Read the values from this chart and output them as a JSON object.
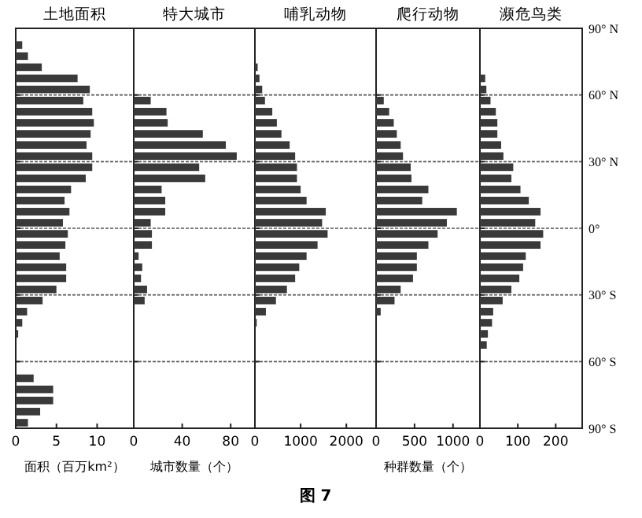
{
  "chart_data": [
    {
      "type": "bar",
      "orientation": "horizontal",
      "title": "土地面积",
      "xlabel": "面积（百万km²）",
      "x": [
        87.5,
        82.5,
        77.5,
        72.5,
        67.5,
        62.5,
        57.5,
        52.5,
        47.5,
        42.5,
        37.5,
        32.5,
        27.5,
        22.5,
        17.5,
        12.5,
        7.5,
        2.5,
        -2.5,
        -7.5,
        -12.5,
        -17.5,
        -22.5,
        -27.5,
        -32.5,
        -37.5,
        -42.5,
        -47.5,
        -52.5,
        -57.5,
        -62.5,
        -67.5,
        -72.5,
        -77.5,
        -82.5,
        -87.5
      ],
      "values": [
        0,
        0.8,
        1.5,
        3.2,
        7.6,
        9.1,
        8.3,
        9.4,
        9.6,
        9.2,
        8.7,
        9.4,
        9.4,
        8.6,
        6.8,
        6.0,
        6.6,
        5.8,
        6.4,
        6.1,
        5.4,
        6.2,
        6.2,
        5.0,
        3.3,
        1.4,
        0.8,
        0.3,
        0,
        0,
        0,
        2.2,
        4.6,
        4.6,
        3.0,
        1.5
      ],
      "color": "#3a3a3a",
      "xlim": [
        0,
        14.5
      ],
      "xticks": [
        0,
        5,
        10
      ],
      "ylim": [
        -90,
        90
      ],
      "yticks": [
        90,
        60,
        30,
        0,
        -30,
        -60,
        -90
      ],
      "grid": "y",
      "tick_labels": "x"
    },
    {
      "type": "bar",
      "orientation": "horizontal",
      "title": "特大城市",
      "xlabel": "城市数量（个）",
      "x": [
        87.5,
        82.5,
        77.5,
        72.5,
        67.5,
        62.5,
        57.5,
        52.5,
        47.5,
        42.5,
        37.5,
        32.5,
        27.5,
        22.5,
        17.5,
        12.5,
        7.5,
        2.5,
        -2.5,
        -7.5,
        -12.5,
        -17.5,
        -22.5,
        -27.5,
        -32.5,
        -37.5,
        -42.5,
        -47.5,
        -52.5,
        -57.5,
        -62.5,
        -67.5,
        -72.5,
        -77.5,
        -82.5,
        -87.5
      ],
      "values": [
        0,
        0,
        0,
        0,
        0,
        0,
        14,
        27,
        28,
        57,
        76,
        85,
        54,
        59,
        23,
        26,
        26,
        14,
        15,
        15,
        4,
        7,
        6,
        11,
        9,
        0,
        0,
        0,
        0,
        0,
        0,
        0,
        0,
        0,
        0,
        0
      ],
      "color": "#3a3a3a",
      "xlim": [
        0,
        100
      ],
      "xticks": [
        0,
        40,
        80
      ],
      "ylim": [
        -90,
        90
      ],
      "yticks": [
        90,
        60,
        30,
        0,
        -30,
        -60,
        -90
      ],
      "grid": "y",
      "tick_labels": "x"
    },
    {
      "type": "bar",
      "orientation": "horizontal",
      "title": "哺乳动物",
      "annotations": [
        "图 7"
      ],
      "x": [
        87.5,
        82.5,
        77.5,
        72.5,
        67.5,
        62.5,
        57.5,
        52.5,
        47.5,
        42.5,
        37.5,
        32.5,
        27.5,
        22.5,
        17.5,
        12.5,
        7.5,
        2.5,
        -2.5,
        -7.5,
        -12.5,
        -17.5,
        -22.5,
        -27.5,
        -32.5,
        -37.5,
        -42.5,
        -47.5,
        -52.5,
        -57.5,
        -62.5,
        -67.5,
        -72.5,
        -77.5,
        -82.5,
        -87.5
      ],
      "values": [
        0,
        0,
        0,
        60,
        100,
        160,
        220,
        380,
        480,
        580,
        760,
        880,
        920,
        920,
        1000,
        1130,
        1550,
        1470,
        1590,
        1370,
        1130,
        970,
        880,
        700,
        460,
        240,
        40,
        0,
        0,
        0,
        0,
        0,
        0,
        0,
        0,
        0
      ],
      "color": "#3a3a3a",
      "xlim": [
        0,
        2650
      ],
      "xticks": [
        0,
        1000,
        2000
      ],
      "ylim": [
        -90,
        90
      ],
      "yticks": [
        90,
        60,
        30,
        0,
        -30,
        -60,
        -90
      ],
      "grid": "y",
      "tick_labels": "x"
    },
    {
      "type": "bar",
      "orientation": "horizontal",
      "title": "爬行动物",
      "xlabel": "种群数量（个）",
      "x": [
        87.5,
        82.5,
        77.5,
        72.5,
        67.5,
        62.5,
        57.5,
        52.5,
        47.5,
        42.5,
        37.5,
        32.5,
        27.5,
        22.5,
        17.5,
        12.5,
        7.5,
        2.5,
        -2.5,
        -7.5,
        -12.5,
        -17.5,
        -22.5,
        -27.5,
        -32.5,
        -37.5,
        -42.5,
        -47.5,
        -52.5,
        -57.5,
        -62.5,
        -67.5,
        -72.5,
        -77.5,
        -82.5,
        -87.5
      ],
      "values": [
        0,
        0,
        0,
        0,
        0,
        0,
        100,
        170,
        230,
        270,
        320,
        350,
        450,
        460,
        680,
        600,
        1050,
        920,
        800,
        680,
        530,
        530,
        480,
        320,
        240,
        60,
        0,
        0,
        0,
        0,
        0,
        0,
        0,
        0,
        0,
        0
      ],
      "color": "#3a3a3a",
      "xlim": [
        0,
        1350
      ],
      "xticks": [
        0,
        500,
        1000
      ],
      "ylim": [
        -90,
        90
      ],
      "yticks": [
        90,
        60,
        30,
        0,
        -30,
        -60,
        -90
      ],
      "grid": "y",
      "tick_labels": "x"
    },
    {
      "type": "bar",
      "orientation": "horizontal",
      "title": "濒危鸟类",
      "x": [
        87.5,
        82.5,
        77.5,
        72.5,
        67.5,
        62.5,
        57.5,
        52.5,
        47.5,
        42.5,
        37.5,
        32.5,
        27.5,
        22.5,
        17.5,
        12.5,
        7.5,
        2.5,
        -2.5,
        -7.5,
        -12.5,
        -17.5,
        -22.5,
        -27.5,
        -32.5,
        -37.5,
        -42.5,
        -47.5,
        -52.5,
        -57.5,
        -62.5,
        -67.5,
        -72.5,
        -77.5,
        -82.5,
        -87.5
      ],
      "values": [
        0,
        0,
        0,
        0,
        14,
        17,
        28,
        42,
        46,
        46,
        56,
        62,
        88,
        83,
        107,
        129,
        160,
        146,
        167,
        160,
        121,
        114,
        104,
        83,
        60,
        35,
        32,
        21,
        18,
        0,
        0,
        0,
        0,
        0,
        0,
        0
      ],
      "color": "#3a3a3a",
      "xlim": [
        0,
        270
      ],
      "xticks": [
        0,
        100,
        200
      ],
      "ylim": [
        -90,
        90
      ],
      "yticks": [
        {
          "value": 90,
          "label": "90° N"
        },
        {
          "value": 60,
          "label": "60° N"
        },
        {
          "value": 30,
          "label": "30° N"
        },
        {
          "value": 0,
          "label": "0°"
        },
        {
          "value": -30,
          "label": "30° S"
        },
        {
          "value": -60,
          "label": "60° S"
        },
        {
          "value": -90,
          "label": "90° S"
        }
      ],
      "grid": "y"
    }
  ]
}
